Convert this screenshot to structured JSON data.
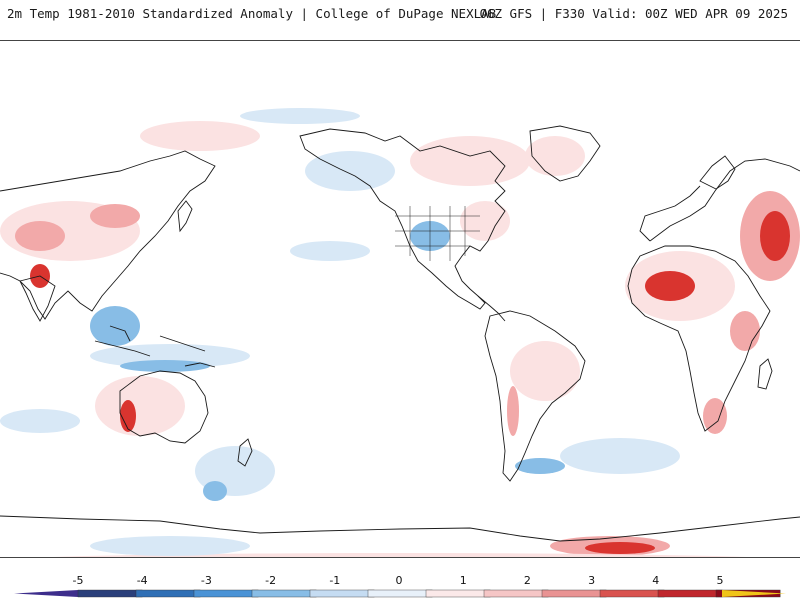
{
  "header": {
    "left_title": "2m Temp 1981-2010 Standardized Anomaly | College of DuPage NEXLAB",
    "right_title": "06Z GFS | F330 Valid: 00Z WED APR 09 2025"
  },
  "map": {
    "projection": "equirectangular",
    "land_outline_color": "#1a1a1a",
    "background_color": "#ffffff"
  },
  "colorbar": {
    "ticks": [
      "-5",
      "-4",
      "-3",
      "-2",
      "-1",
      "0",
      "1",
      "2",
      "3",
      "4",
      "5"
    ],
    "colors": [
      "#3d2e8c",
      "#2a3f7a",
      "#2f6fb5",
      "#4a93d6",
      "#88bde6",
      "#c5dcf2",
      "#e8f1fa",
      "#fbe9e9",
      "#f5c6c6",
      "#e99393",
      "#d9534f",
      "#c0272d",
      "#8b0a1a",
      "#f0c419"
    ]
  },
  "legend": {
    "anomaly_colors": {
      "strong_cold": "#2f6fb5",
      "cold": "#88bde6",
      "weak_cold": "#d8e8f6",
      "weak_warm": "#fbe2e2",
      "warm": "#f2a9a9",
      "strong_warm": "#d9342f",
      "extreme_warm": "#9b0f1c"
    }
  }
}
